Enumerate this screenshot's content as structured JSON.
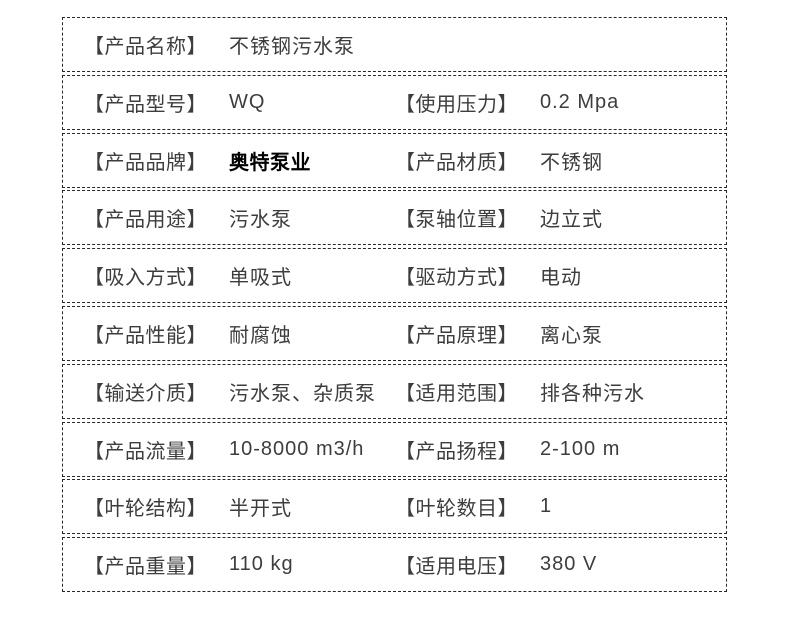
{
  "colors": {
    "text": "#3d3d3d",
    "border": "#282828",
    "brand": "#000000",
    "row_background": "#ffffff",
    "page_background": "#ffffff"
  },
  "table": {
    "rows": [
      {
        "cells": [
          {
            "label": "【产品名称】",
            "value": "不锈钢污水泵",
            "bold": false
          }
        ]
      },
      {
        "cells": [
          {
            "label": "【产品型号】",
            "value": "WQ",
            "bold": false
          },
          {
            "label": "【使用压力】",
            "value": "0.2 Mpa",
            "bold": false
          }
        ]
      },
      {
        "cells": [
          {
            "label": "【产品品牌】",
            "value": "奥特泵业",
            "bold": true
          },
          {
            "label": "【产品材质】",
            "value": "不锈钢",
            "bold": false
          }
        ]
      },
      {
        "cells": [
          {
            "label": "【产品用途】",
            "value": "污水泵",
            "bold": false
          },
          {
            "label": "【泵轴位置】",
            "value": "边立式",
            "bold": false
          }
        ]
      },
      {
        "cells": [
          {
            "label": "【吸入方式】",
            "value": "单吸式",
            "bold": false
          },
          {
            "label": "【驱动方式】",
            "value": "电动",
            "bold": false
          }
        ]
      },
      {
        "cells": [
          {
            "label": "【产品性能】",
            "value": "耐腐蚀",
            "bold": false
          },
          {
            "label": "【产品原理】",
            "value": "离心泵",
            "bold": false
          }
        ]
      },
      {
        "cells": [
          {
            "label": "【输送介质】",
            "value": "污水泵、杂质泵",
            "bold": false
          },
          {
            "label": "【适用范围】",
            "value": "排各种污水",
            "bold": false
          }
        ]
      },
      {
        "cells": [
          {
            "label": "【产品流量】",
            "value": "10-8000 m3/h",
            "bold": false
          },
          {
            "label": "【产品扬程】",
            "value": "2-100 m",
            "bold": false
          }
        ]
      },
      {
        "cells": [
          {
            "label": "【叶轮结构】",
            "value": "半开式",
            "bold": false
          },
          {
            "label": "【叶轮数目】",
            "value": "1",
            "bold": false
          }
        ]
      },
      {
        "cells": [
          {
            "label": "【产品重量】",
            "value": "110 kg",
            "bold": false
          },
          {
            "label": "【适用电压】",
            "value": "380 V",
            "bold": false
          }
        ]
      }
    ]
  }
}
